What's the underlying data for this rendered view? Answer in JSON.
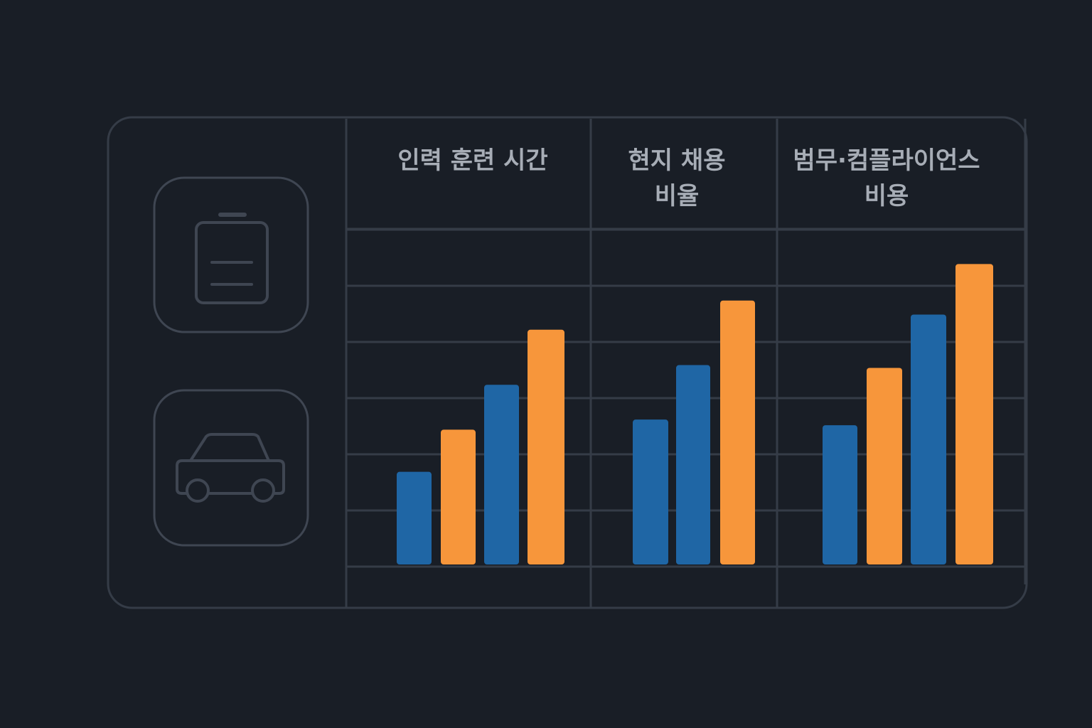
{
  "colors": {
    "background": "#191e26",
    "grid": "#353c47",
    "icon": "#3f4652",
    "header_text": "#a7adb6",
    "bar_blue": "#1f66a5",
    "bar_orange": "#f7963b"
  },
  "icons": [
    "battery-icon",
    "car-icon"
  ],
  "chart_data": {
    "type": "bar",
    "grid": true,
    "legend": "none",
    "ylim": [
      0,
      9
    ],
    "panels": [
      {
        "header_lines": [
          "인력 훈련 시간"
        ],
        "bars": [
          {
            "color": "blue",
            "value": 1.65
          },
          {
            "color": "orange",
            "value": 2.4
          },
          {
            "color": "blue",
            "value": 3.2
          },
          {
            "color": "orange",
            "value": 4.18
          }
        ]
      },
      {
        "header_lines": [
          "현지 채용",
          "비율"
        ],
        "bars": [
          {
            "color": "blue",
            "value": 2.58
          },
          {
            "color": "blue",
            "value": 3.55
          },
          {
            "color": "orange",
            "value": 4.7
          }
        ]
      },
      {
        "header_lines": [
          "범무·컴플라이언스",
          "비용"
        ],
        "bars": [
          {
            "color": "blue",
            "value": 2.48
          },
          {
            "color": "orange",
            "value": 3.5
          },
          {
            "color": "blue",
            "value": 4.45
          },
          {
            "color": "orange",
            "value": 5.35
          }
        ]
      }
    ]
  }
}
